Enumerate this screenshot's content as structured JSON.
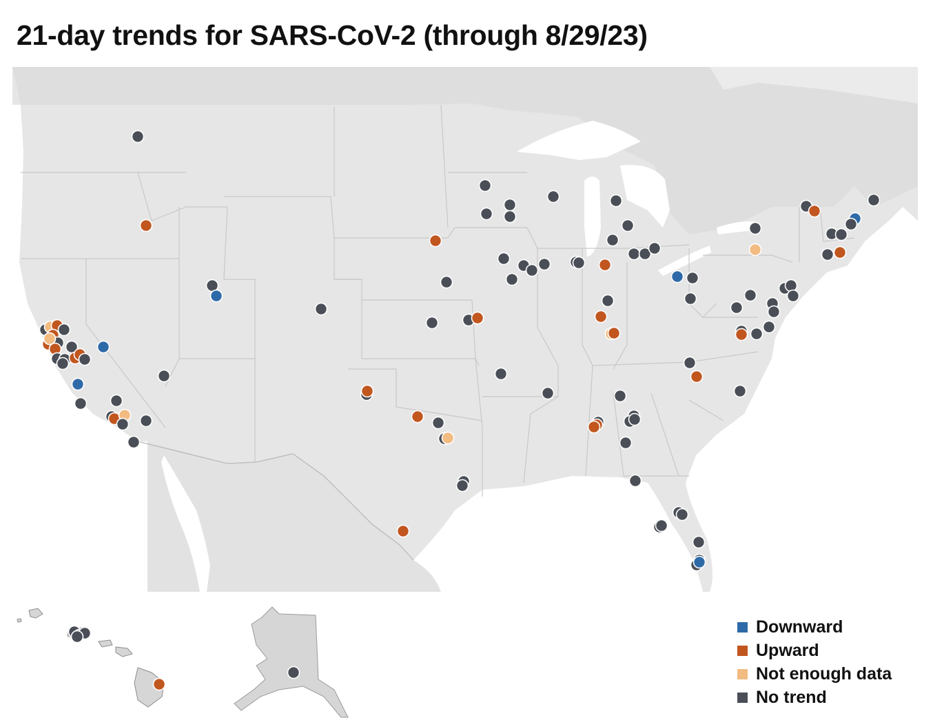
{
  "title": "21-day trends for SARS-CoV-2 (through 8/29/23)",
  "colors": {
    "downward": "#2f6aa8",
    "upward": "#c1561f",
    "not_enough_data": "#f2bb82",
    "no_trend": "#4a4f57"
  },
  "legend": [
    {
      "key": "downward",
      "label": "Downward"
    },
    {
      "key": "upward",
      "label": "Upward"
    },
    {
      "key": "not_enough_data",
      "label": "Not enough data"
    },
    {
      "key": "no_trend",
      "label": "No trend"
    }
  ],
  "trend_site_counts": {
    "downward": 6,
    "upward": 31,
    "not_enough_data": 6,
    "no_trend": 103
  }
}
